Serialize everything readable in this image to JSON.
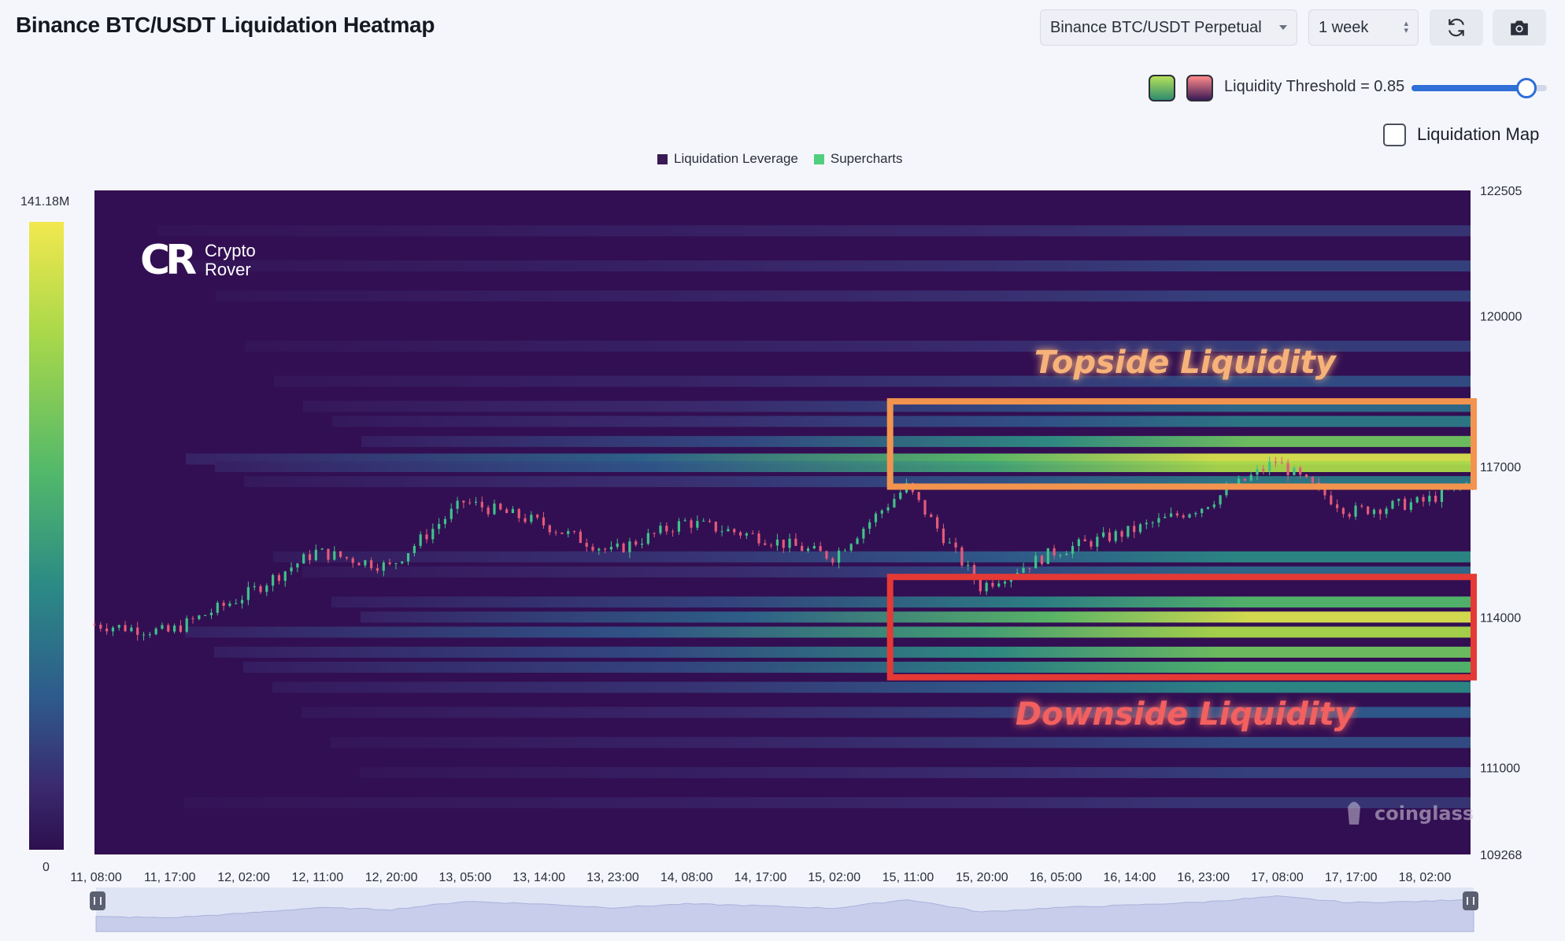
{
  "header": {
    "title": "Binance BTC/USDT Liquidation Heatmap",
    "market_select": "Binance BTC/USDT Perpetual",
    "range_select": "1 week",
    "refresh_icon": "refresh-icon",
    "camera_icon": "camera-icon"
  },
  "controls": {
    "swatch_1_colors": [
      "#2e8c6e",
      "#b6e05a"
    ],
    "swatch_2_colors": [
      "#ff8a8a",
      "#3a1a55"
    ],
    "threshold_label": "Liquidity Threshold = 0.85",
    "threshold_value": 0.85,
    "liquidation_map_label": "Liquidation Map",
    "liquidation_map_checked": false
  },
  "legend": [
    {
      "label": "Liquidation Leverage",
      "color": "#3a1a55"
    },
    {
      "label": "Supercharts",
      "color": "#4fcf7e"
    }
  ],
  "colorbar": {
    "max_label": "141.18M",
    "min_label": "0"
  },
  "watermarks": {
    "logo_mark": "CR",
    "logo_line1": "Crypto",
    "logo_line2": "Rover",
    "source": "coinglass"
  },
  "chart_data": {
    "type": "heatmap",
    "title": "Binance BTC/USDT Liquidation Heatmap",
    "y_ticks": [
      122505,
      120000,
      117000,
      114000,
      111000,
      109268
    ],
    "ylim": [
      109268,
      122505
    ],
    "x_ticks": [
      "11, 08:00",
      "11, 17:00",
      "12, 02:00",
      "12, 11:00",
      "12, 20:00",
      "13, 05:00",
      "13, 14:00",
      "13, 23:00",
      "14, 08:00",
      "14, 17:00",
      "15, 02:00",
      "15, 11:00",
      "15, 20:00",
      "16, 05:00",
      "16, 14:00",
      "16, 23:00",
      "17, 08:00",
      "17, 17:00",
      "18, 02:00"
    ],
    "colorscale": {
      "min": 0,
      "max": 141180000,
      "max_label": "141.18M"
    },
    "price_series": [
      {
        "t": "11, 08:00",
        "price": 113850
      },
      {
        "t": "11, 17:00",
        "price": 113700
      },
      {
        "t": "12, 02:00",
        "price": 114400
      },
      {
        "t": "12, 11:00",
        "price": 115300
      },
      {
        "t": "12, 20:00",
        "price": 115000
      },
      {
        "t": "13, 05:00",
        "price": 116300
      },
      {
        "t": "13, 14:00",
        "price": 115900
      },
      {
        "t": "13, 23:00",
        "price": 115300
      },
      {
        "t": "14, 08:00",
        "price": 115900
      },
      {
        "t": "14, 17:00",
        "price": 115600
      },
      {
        "t": "15, 02:00",
        "price": 115200
      },
      {
        "t": "15, 11:00",
        "price": 116600
      },
      {
        "t": "15, 20:00",
        "price": 114600
      },
      {
        "t": "16, 05:00",
        "price": 115300
      },
      {
        "t": "16, 14:00",
        "price": 115700
      },
      {
        "t": "16, 23:00",
        "price": 116200
      },
      {
        "t": "17, 08:00",
        "price": 117100
      },
      {
        "t": "17, 17:00",
        "price": 116100
      },
      {
        "t": "18, 02:00",
        "price": 116300
      },
      {
        "t": "18, 08:00",
        "price": 116700
      }
    ],
    "liquidity_bands": [
      {
        "price": 121700,
        "intensity": 0.25
      },
      {
        "price": 121000,
        "intensity": 0.3
      },
      {
        "price": 120400,
        "intensity": 0.3
      },
      {
        "price": 119400,
        "intensity": 0.28
      },
      {
        "price": 118700,
        "intensity": 0.35
      },
      {
        "price": 118200,
        "intensity": 0.45
      },
      {
        "price": 117900,
        "intensity": 0.5
      },
      {
        "price": 117500,
        "intensity": 0.75
      },
      {
        "price": 117150,
        "intensity": 0.95
      },
      {
        "price": 117000,
        "intensity": 0.85
      },
      {
        "price": 116700,
        "intensity": 0.5
      },
      {
        "price": 115200,
        "intensity": 0.55
      },
      {
        "price": 114900,
        "intensity": 0.45
      },
      {
        "price": 114300,
        "intensity": 0.7
      },
      {
        "price": 114000,
        "intensity": 0.95
      },
      {
        "price": 113700,
        "intensity": 0.85
      },
      {
        "price": 113300,
        "intensity": 0.75
      },
      {
        "price": 113000,
        "intensity": 0.7
      },
      {
        "price": 112600,
        "intensity": 0.55
      },
      {
        "price": 112100,
        "intensity": 0.4
      },
      {
        "price": 111500,
        "intensity": 0.35
      },
      {
        "price": 110900,
        "intensity": 0.3
      },
      {
        "price": 110300,
        "intensity": 0.25
      }
    ],
    "annotations": [
      {
        "label": "Topside Liquidity",
        "price_range": [
          116600,
          118300
        ],
        "time_range": [
          "15, 09:00",
          "18, 08:00"
        ],
        "color": "#f2944e"
      },
      {
        "label": "Downside Liquidity",
        "price_range": [
          112800,
          114800
        ],
        "time_range": [
          "15, 09:00",
          "18, 08:00"
        ],
        "color": "#e53935"
      }
    ]
  }
}
